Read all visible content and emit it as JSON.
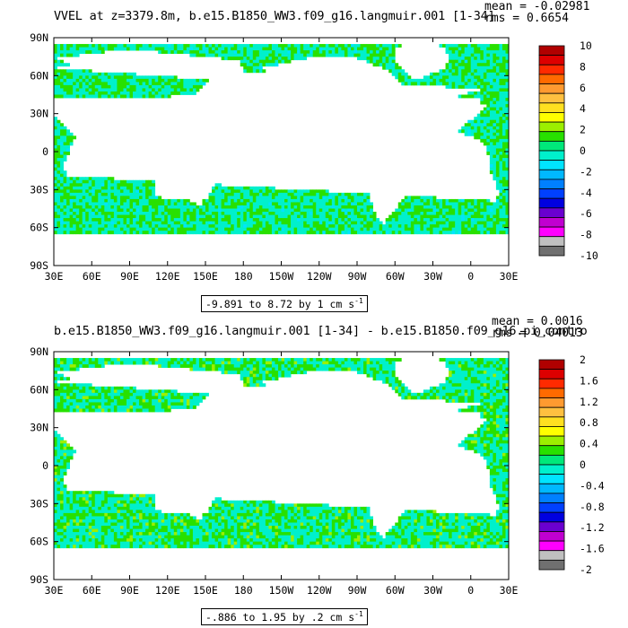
{
  "chart_data": [
    {
      "type": "heatmap",
      "title": "VVEL at z=3379.8m, b.e15.B1850_WW3.f09_g16.langmuir.001 [1-34]",
      "stats": {
        "mean_label": "mean = -0.02981",
        "rms_label": "rms = 0.6654"
      },
      "range_label": "-9.891 to 8.72 by 1 cm s",
      "range_unit_sup": "-1",
      "x_ticks": [
        "30E",
        "60E",
        "90E",
        "120E",
        "150E",
        "180",
        "150W",
        "120W",
        "90W",
        "60W",
        "30W",
        "0",
        "30E"
      ],
      "y_ticks": [
        "90N",
        "60N",
        "30N",
        "0",
        "30S",
        "60S",
        "90S"
      ],
      "colorbar": {
        "labels": [
          "10",
          "8",
          "6",
          "4",
          "2",
          "0",
          "-2",
          "-4",
          "-6",
          "-8",
          "-10"
        ],
        "colors": [
          "#b00000",
          "#dd0000",
          "#ff2a00",
          "#ff6a00",
          "#ff9a30",
          "#ffc040",
          "#ffe020",
          "#ffff00",
          "#9cef00",
          "#28e000",
          "#00e87a",
          "#00f0cc",
          "#00e4ff",
          "#00b8ff",
          "#0080ff",
          "#0040ff",
          "#0000e0",
          "#6a00d0",
          "#c000d0",
          "#ff00ff",
          "#c0c0c0",
          "#707070"
        ]
      }
    },
    {
      "type": "heatmap",
      "title": "b.e15.B1850_WW3.f09_g16.langmuir.001 [1-34] - b.e15.B1850.f09_g16.pi_contro",
      "stats": {
        "mean_label": "mean = 0.0016",
        "rms_label": "rms = 0.04013"
      },
      "range_label": "-.886 to 1.95 by .2 cm s",
      "range_unit_sup": "-1",
      "x_ticks": [
        "30E",
        "60E",
        "90E",
        "120E",
        "150E",
        "180",
        "150W",
        "120W",
        "90W",
        "60W",
        "30W",
        "0",
        "30E"
      ],
      "y_ticks": [
        "90N",
        "60N",
        "30N",
        "0",
        "30S",
        "60S",
        "90S"
      ],
      "colorbar": {
        "labels": [
          "2",
          "1.6",
          "1.2",
          "0.8",
          "0.4",
          "0",
          "-0.4",
          "-0.8",
          "-1.2",
          "-1.6",
          "-2"
        ],
        "colors": [
          "#b00000",
          "#dd0000",
          "#ff2a00",
          "#ff6a00",
          "#ff9a30",
          "#ffc040",
          "#ffe020",
          "#ffff00",
          "#9cef00",
          "#28e000",
          "#00e87a",
          "#00f0cc",
          "#00e4ff",
          "#00b8ff",
          "#0080ff",
          "#0040ff",
          "#0000e0",
          "#6a00d0",
          "#c000d0",
          "#ff00ff",
          "#c0c0c0",
          "#707070"
        ]
      }
    }
  ]
}
